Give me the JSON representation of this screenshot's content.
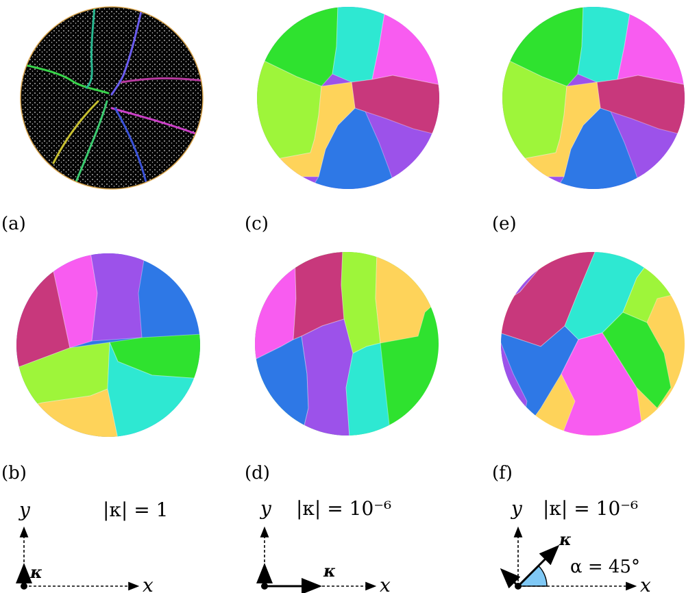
{
  "colors": {
    "green": "#2fe22f",
    "cyan": "#2ee8d2",
    "magenta": "#f85cf0",
    "lime": "#9ef53a",
    "crimson": "#c8387c",
    "yellow": "#fed35a",
    "purple": "#9c52ea",
    "blue": "#2e78e6",
    "mesh_bg": "#050505",
    "mesh_border": "#d6a24a",
    "angle_fill": "#7fc8f5"
  },
  "panels": [
    {
      "id": "a",
      "label": "(a)"
    },
    {
      "id": "b",
      "label": "(b)"
    },
    {
      "id": "c",
      "label": "(c)"
    },
    {
      "id": "d",
      "label": "(d)"
    },
    {
      "id": "e",
      "label": "(e)"
    },
    {
      "id": "f",
      "label": "(f)"
    }
  ],
  "axes_diagrams": [
    {
      "x_label": "x",
      "y_label": "y",
      "kappa_label": "κ",
      "magnitude": "|κ| = 1"
    },
    {
      "x_label": "x",
      "y_label": "y",
      "kappa_label": "κ",
      "magnitude": "|κ| = 10⁻⁶"
    },
    {
      "x_label": "x",
      "y_label": "y",
      "kappa_label": "κ",
      "magnitude": "|κ| = 10⁻⁶",
      "angle_label": "α = 45°"
    }
  ]
}
